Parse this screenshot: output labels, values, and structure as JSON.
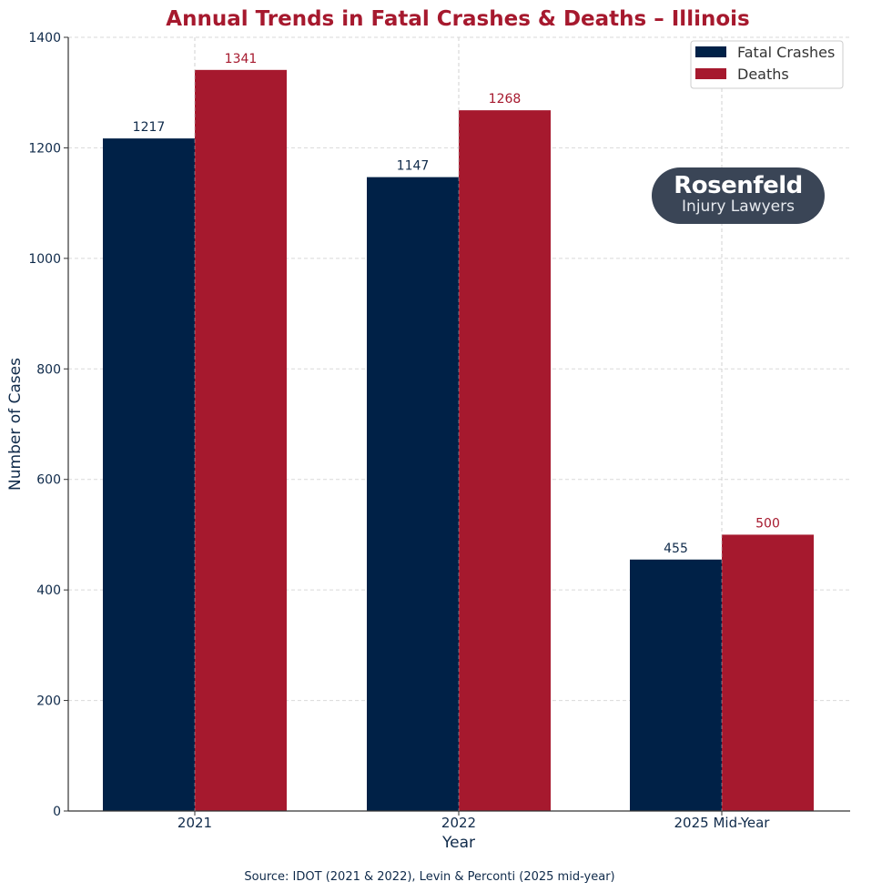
{
  "chart_data": {
    "type": "bar",
    "title": "Annual Trends in Fatal Crashes & Deaths – Illinois",
    "xlabel": "Year",
    "ylabel": "Number of Cases",
    "categories": [
      "2021",
      "2022",
      "2025 Mid-Year"
    ],
    "series": [
      {
        "name": "Fatal Crashes",
        "values": [
          1217,
          1147,
          455
        ],
        "color": "#002147"
      },
      {
        "name": "Deaths",
        "values": [
          1341,
          1268,
          500
        ],
        "color": "#a6192e"
      }
    ],
    "ylim": [
      0,
      1400
    ],
    "yticks": [
      "0",
      "200",
      "400",
      "600",
      "800",
      "1000",
      "1200",
      "1400"
    ],
    "grid": true,
    "legend_position": "top-right",
    "source": "Source: IDOT (2021 & 2022), Levin & Perconti (2025 mid-year)"
  },
  "logo": {
    "brand": "Rosenfeld",
    "tagline": "Injury Lawyers"
  },
  "colors": {
    "title": "#a6192e",
    "axis_text": "#0f2a4a",
    "grid": "#d9d9d9",
    "logo_bg": "#3a4556"
  }
}
